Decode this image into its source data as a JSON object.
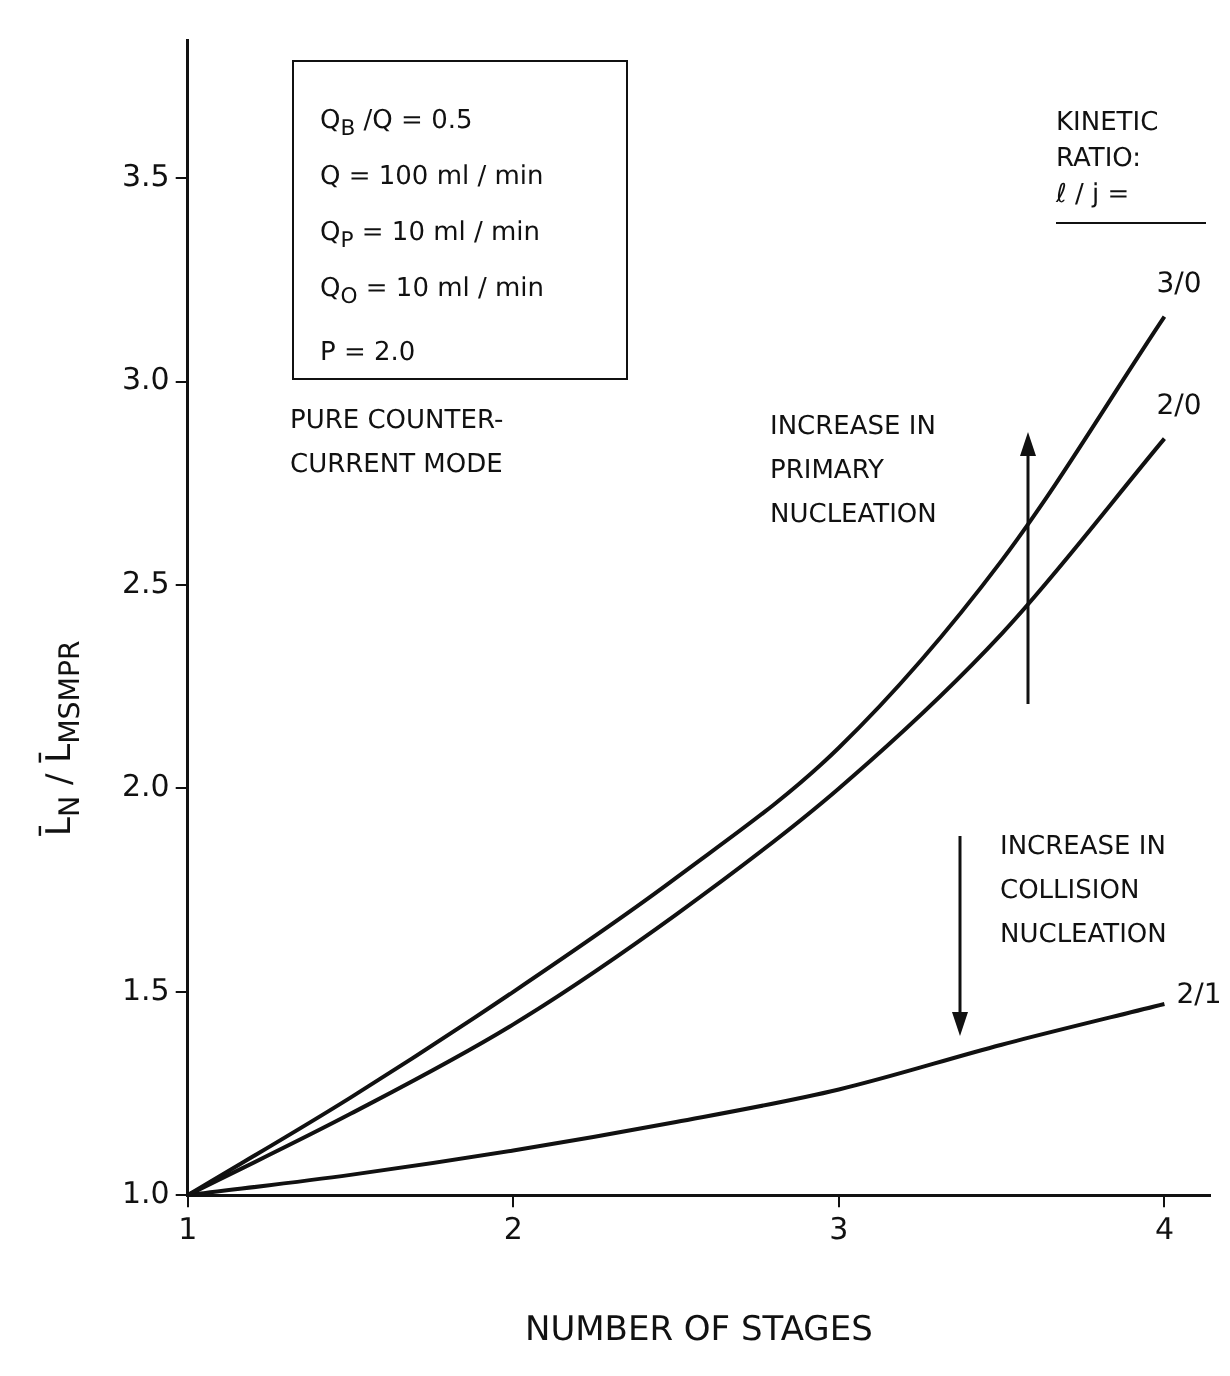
{
  "chart_data": {
    "type": "line",
    "xlabel": "NUMBER OF STAGES",
    "ylabel": "L̄$_{N}$ / L̄$_{MSMPR}$",
    "legend_title": "KINETIC\nRATIO:\nℓ / j =",
    "annotations": [
      "Q$_{B}$ /Q = 0.5",
      "Q = 100 ml / min",
      "Q$_{P}$ = 10 ml / min",
      "Q$_{O}$ = 10 ml / min",
      "P = 2.0",
      "PURE COUNTER-CURRENT MODE",
      "INCREASE IN PRIMARY NUCLEATION",
      "INCREASE IN COLLISION NUCLEATION"
    ],
    "x": [
      1,
      1.5,
      2,
      2.5,
      3,
      3.5,
      4
    ],
    "series": [
      {
        "name": "3/0",
        "color": "#111111",
        "values": [
          1.0,
          1.24,
          1.5,
          1.78,
          2.1,
          2.56,
          3.16
        ]
      },
      {
        "name": "2/0",
        "color": "#111111",
        "values": [
          1.0,
          1.2,
          1.42,
          1.69,
          2.0,
          2.38,
          2.86
        ]
      },
      {
        "name": "2/1",
        "color": "#111111",
        "values": [
          1.0,
          1.05,
          1.11,
          1.18,
          1.26,
          1.37,
          1.47
        ]
      }
    ],
    "xlim": [
      1,
      4.14
    ],
    "xticks": [
      1,
      2,
      3,
      4
    ],
    "ylim": [
      1,
      3.84
    ],
    "yticks": [
      {
        "value": 1,
        "label": "1.0"
      },
      {
        "value": 1.5,
        "label": "1.5"
      },
      {
        "value": 2,
        "label": "2.0"
      },
      {
        "value": 2.5,
        "label": "2.5"
      },
      {
        "value": 3,
        "label": "3.0"
      },
      {
        "value": 3.5,
        "label": "3.5"
      }
    ],
    "grid": false,
    "legend": false,
    "marker": "none",
    "line_style": "solid"
  }
}
